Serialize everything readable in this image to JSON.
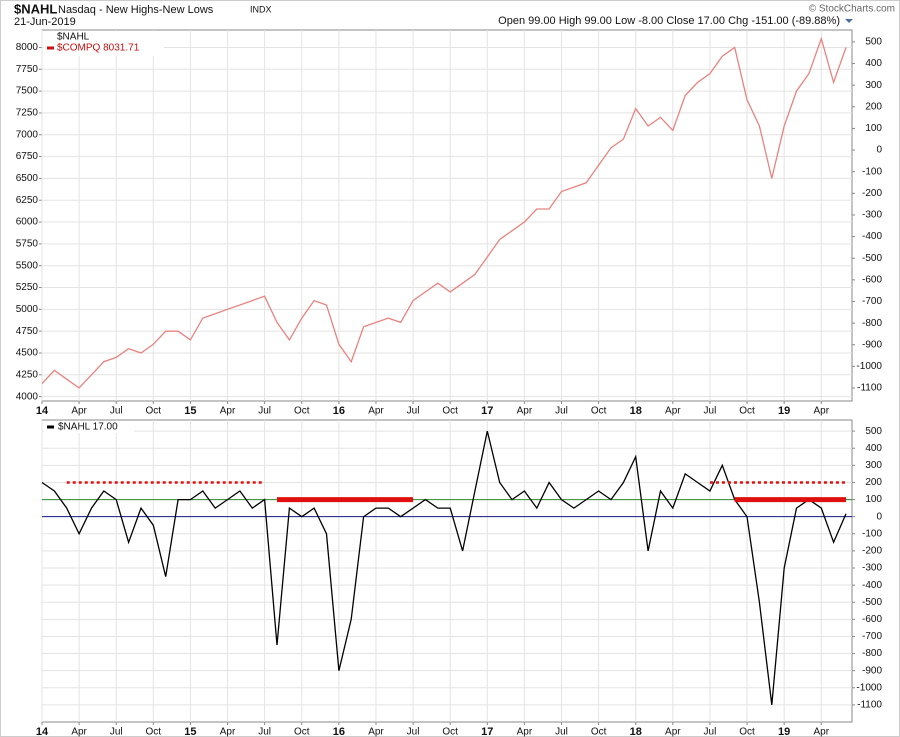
{
  "header": {
    "symbol": "$NAHL",
    "name": "Nasdaq - New Highs-New Lows",
    "exchange": "INDX",
    "date": "21-Jun-2019",
    "quote": "Open 99.00  High 99.00  Low -8.00  Close 17.00  Chg -151.00 (-89.88%)",
    "credit": "© StockCharts.com"
  },
  "chart_data": [
    {
      "type": "line",
      "label": "$NAHL",
      "x": [
        "2014-01",
        "2014-02",
        "2014-03",
        "2014-04",
        "2014-05",
        "2014-06",
        "2014-07",
        "2014-08",
        "2014-09",
        "2014-10",
        "2014-11",
        "2014-12",
        "2015-01",
        "2015-02",
        "2015-03",
        "2015-04",
        "2015-05",
        "2015-06",
        "2015-07",
        "2015-08",
        "2015-09",
        "2015-10",
        "2015-11",
        "2015-12",
        "2016-01",
        "2016-02",
        "2016-03",
        "2016-04",
        "2016-05",
        "2016-06",
        "2016-07",
        "2016-08",
        "2016-09",
        "2016-10",
        "2016-11",
        "2016-12",
        "2017-01",
        "2017-02",
        "2017-03",
        "2017-04",
        "2017-05",
        "2017-06",
        "2017-07",
        "2017-08",
        "2017-09",
        "2017-10",
        "2017-11",
        "2017-12",
        "2018-01",
        "2018-02",
        "2018-03",
        "2018-04",
        "2018-05",
        "2018-06",
        "2018-07",
        "2018-08",
        "2018-09",
        "2018-10",
        "2018-11",
        "2018-12",
        "2019-01",
        "2019-02",
        "2019-03",
        "2019-04",
        "2019-05",
        "2019-06"
      ],
      "series": [
        {
          "name": "$COMPQ 8031.71",
          "color": "#e8837f",
          "values": [
            4150,
            4300,
            4200,
            4100,
            4250,
            4400,
            4450,
            4550,
            4500,
            4600,
            4750,
            4750,
            4650,
            4900,
            4950,
            5000,
            5050,
            5100,
            5150,
            4850,
            4650,
            4900,
            5100,
            5050,
            4600,
            4400,
            4800,
            4850,
            4900,
            4850,
            5100,
            5200,
            5300,
            5200,
            5300,
            5400,
            5600,
            5800,
            5900,
            6000,
            6150,
            6150,
            6350,
            6400,
            6450,
            6650,
            6850,
            6950,
            7300,
            7100,
            7200,
            7050,
            7450,
            7600,
            7700,
            7900,
            8000,
            7400,
            7100,
            6500,
            7100,
            7500,
            7700,
            8100,
            7600,
            8000
          ]
        }
      ],
      "xlim": [
        "2014-01",
        "2019-06"
      ],
      "xticks": [
        {
          "value": "2014-01",
          "label": "14"
        },
        {
          "value": "2014-04",
          "label": "Apr"
        },
        {
          "value": "2014-07",
          "label": "Jul"
        },
        {
          "value": "2014-10",
          "label": "Oct"
        },
        {
          "value": "2015-01",
          "label": "15"
        },
        {
          "value": "2015-04",
          "label": "Apr"
        },
        {
          "value": "2015-07",
          "label": "Jul"
        },
        {
          "value": "2015-10",
          "label": "Oct"
        },
        {
          "value": "2016-01",
          "label": "16"
        },
        {
          "value": "2016-04",
          "label": "Apr"
        },
        {
          "value": "2016-07",
          "label": "Jul"
        },
        {
          "value": "2016-10",
          "label": "Oct"
        },
        {
          "value": "2017-01",
          "label": "17"
        },
        {
          "value": "2017-04",
          "label": "Apr"
        },
        {
          "value": "2017-07",
          "label": "Jul"
        },
        {
          "value": "2017-10",
          "label": "Oct"
        },
        {
          "value": "2018-01",
          "label": "18"
        },
        {
          "value": "2018-04",
          "label": "Apr"
        },
        {
          "value": "2018-07",
          "label": "Jul"
        },
        {
          "value": "2018-10",
          "label": "Oct"
        },
        {
          "value": "2019-01",
          "label": "19"
        },
        {
          "value": "2019-04",
          "label": "Apr"
        }
      ],
      "ylim": [
        3950,
        8200
      ],
      "yticks": [
        4000,
        4250,
        4500,
        4750,
        5000,
        5250,
        5500,
        5750,
        6000,
        6250,
        6500,
        6750,
        7000,
        7250,
        7500,
        7750,
        8000
      ],
      "y2lim": [
        -1160,
        555
      ],
      "y2ticks": [
        -1100,
        -1000,
        -900,
        -800,
        -700,
        -600,
        -500,
        -400,
        -300,
        -200,
        -100,
        0,
        100,
        200,
        300,
        400,
        500
      ],
      "grid": true
    },
    {
      "type": "line",
      "label": "$NAHL 17.00",
      "x": [
        "2014-01",
        "2014-02",
        "2014-03",
        "2014-04",
        "2014-05",
        "2014-06",
        "2014-07",
        "2014-08",
        "2014-09",
        "2014-10",
        "2014-11",
        "2014-12",
        "2015-01",
        "2015-02",
        "2015-03",
        "2015-04",
        "2015-05",
        "2015-06",
        "2015-07",
        "2015-08",
        "2015-09",
        "2015-10",
        "2015-11",
        "2015-12",
        "2016-01",
        "2016-02",
        "2016-03",
        "2016-04",
        "2016-05",
        "2016-06",
        "2016-07",
        "2016-08",
        "2016-09",
        "2016-10",
        "2016-11",
        "2016-12",
        "2017-01",
        "2017-02",
        "2017-03",
        "2017-04",
        "2017-05",
        "2017-06",
        "2017-07",
        "2017-08",
        "2017-09",
        "2017-10",
        "2017-11",
        "2017-12",
        "2018-01",
        "2018-02",
        "2018-03",
        "2018-04",
        "2018-05",
        "2018-06",
        "2018-07",
        "2018-08",
        "2018-09",
        "2018-10",
        "2018-11",
        "2018-12",
        "2019-01",
        "2019-02",
        "2019-03",
        "2019-04",
        "2019-05",
        "2019-06"
      ],
      "series": [
        {
          "name": "$NAHL",
          "color": "#000000",
          "values": [
            200,
            150,
            50,
            -100,
            50,
            150,
            100,
            -150,
            50,
            -50,
            -350,
            100,
            100,
            150,
            50,
            100,
            150,
            50,
            100,
            -750,
            50,
            0,
            50,
            -100,
            -900,
            -600,
            0,
            50,
            50,
            0,
            50,
            100,
            50,
            50,
            -200,
            150,
            500,
            200,
            100,
            150,
            50,
            200,
            100,
            50,
            100,
            150,
            100,
            200,
            350,
            -200,
            150,
            50,
            250,
            200,
            150,
            300,
            100,
            0,
            -500,
            -1100,
            -300,
            50,
            100,
            50,
            -150,
            17
          ]
        }
      ],
      "xlim": [
        "2014-01",
        "2019-06"
      ],
      "xticks": [
        {
          "value": "2014-01",
          "label": "14"
        },
        {
          "value": "2014-04",
          "label": "Apr"
        },
        {
          "value": "2014-07",
          "label": "Jul"
        },
        {
          "value": "2014-10",
          "label": "Oct"
        },
        {
          "value": "2015-01",
          "label": "15"
        },
        {
          "value": "2015-04",
          "label": "Apr"
        },
        {
          "value": "2015-07",
          "label": "Jul"
        },
        {
          "value": "2015-10",
          "label": "Oct"
        },
        {
          "value": "2016-01",
          "label": "16"
        },
        {
          "value": "2016-04",
          "label": "Apr"
        },
        {
          "value": "2016-07",
          "label": "Jul"
        },
        {
          "value": "2016-10",
          "label": "Oct"
        },
        {
          "value": "2017-01",
          "label": "17"
        },
        {
          "value": "2017-04",
          "label": "Apr"
        },
        {
          "value": "2017-07",
          "label": "Jul"
        },
        {
          "value": "2017-10",
          "label": "Oct"
        },
        {
          "value": "2018-01",
          "label": "18"
        },
        {
          "value": "2018-04",
          "label": "Apr"
        },
        {
          "value": "2018-07",
          "label": "Jul"
        },
        {
          "value": "2018-10",
          "label": "Oct"
        },
        {
          "value": "2019-01",
          "label": "19"
        },
        {
          "value": "2019-04",
          "label": "Apr"
        }
      ],
      "ylim": [
        -1200,
        565
      ],
      "yticks": [
        -1100,
        -1000,
        -900,
        -800,
        -700,
        -600,
        -500,
        -400,
        -300,
        -200,
        -100,
        0,
        100,
        200,
        300,
        400,
        500
      ],
      "yaxis_side": "right",
      "grid": true,
      "hlines": [
        {
          "y": 100,
          "color": "#2e8b2e"
        },
        {
          "y": 0,
          "color": "#1a1a8c"
        }
      ],
      "segments": [
        {
          "x": [
            "2014-03",
            "2015-07"
          ],
          "y": 200,
          "color": "#e01010",
          "style": "dotted"
        },
        {
          "x": [
            "2015-08",
            "2016-07"
          ],
          "y": 100,
          "color": "#e01010",
          "style": "solid"
        },
        {
          "x": [
            "2018-07",
            "2019-06"
          ],
          "y": 200,
          "color": "#e01010",
          "style": "dotted"
        },
        {
          "x": [
            "2018-09",
            "2019-06"
          ],
          "y": 100,
          "color": "#e01010",
          "style": "solid"
        }
      ]
    }
  ]
}
